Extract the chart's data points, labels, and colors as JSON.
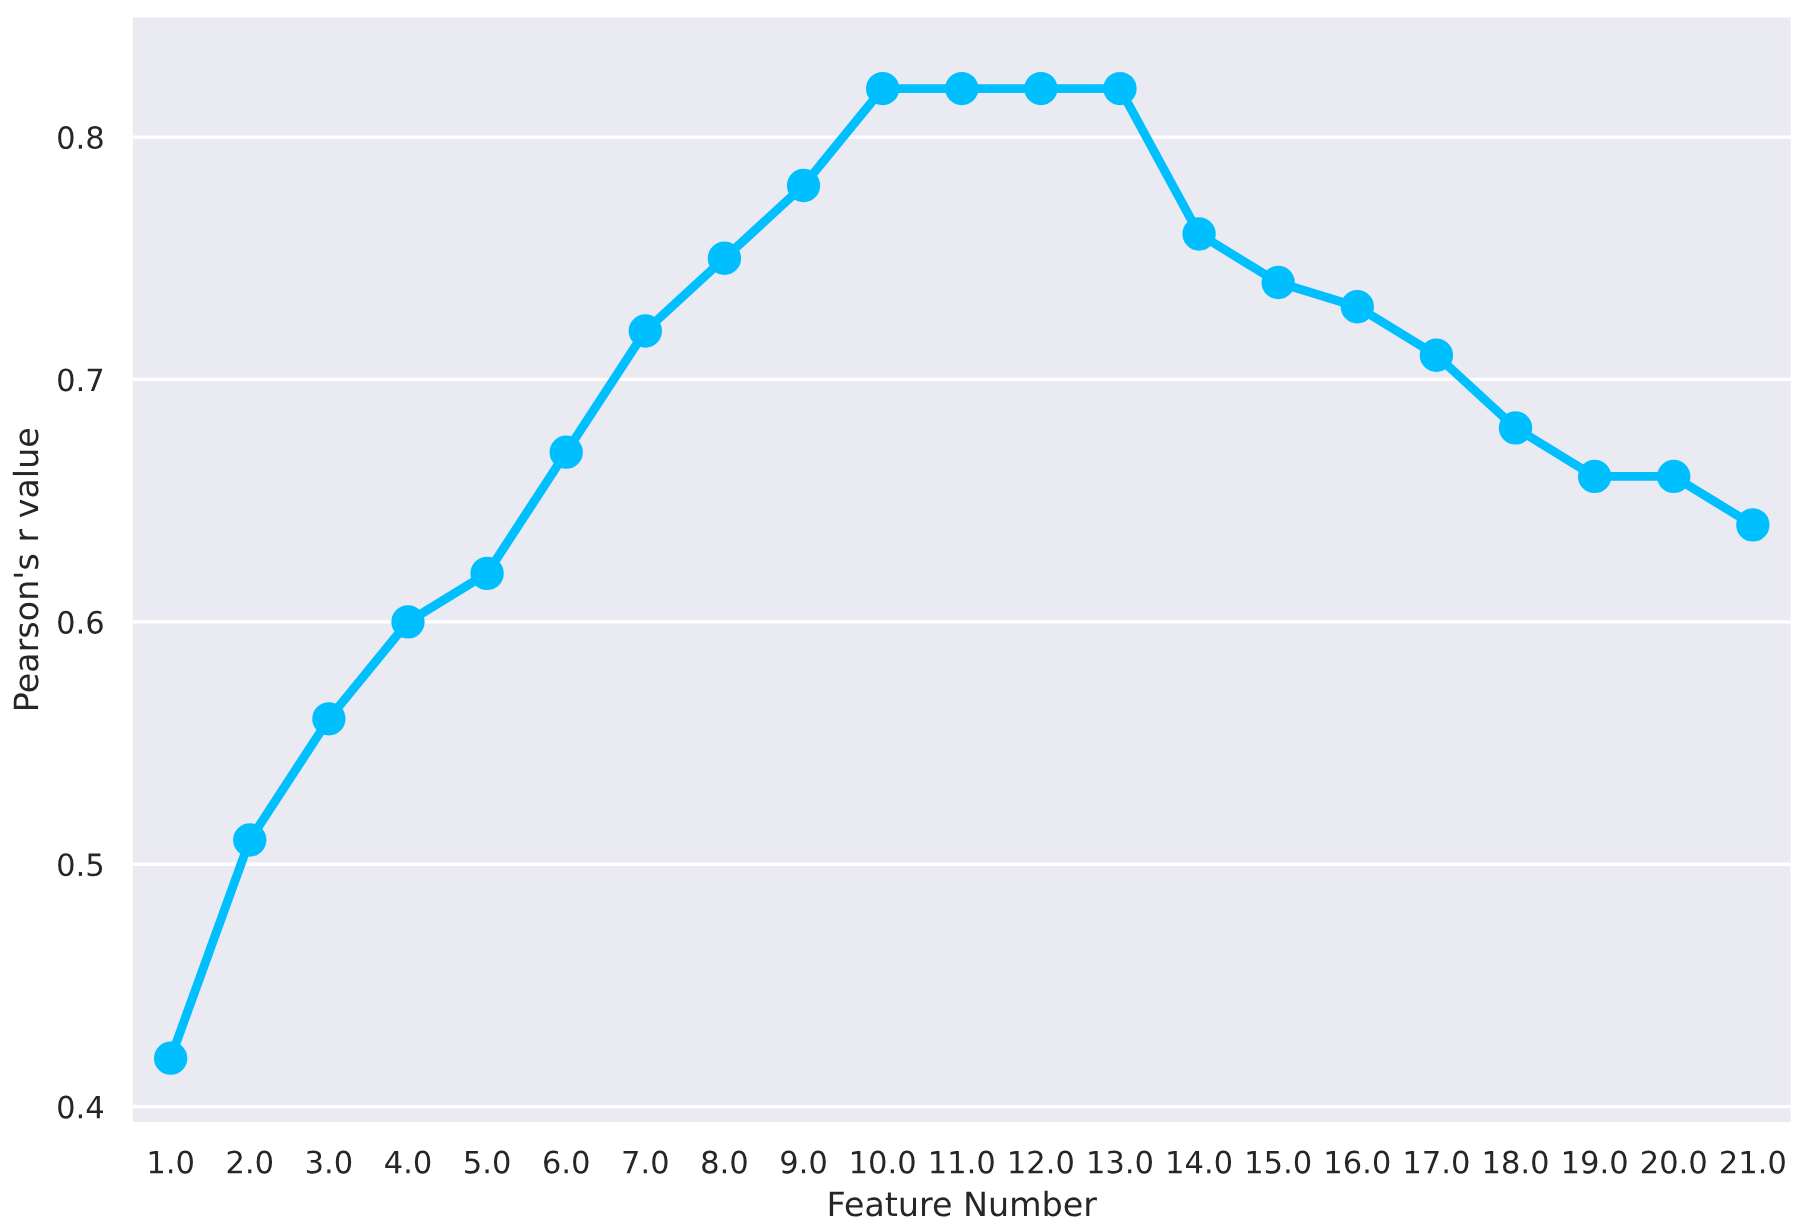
{
  "chart_data": {
    "type": "line",
    "xlabel": "Feature Number",
    "ylabel": "Pearson's r value",
    "categories": [
      "1.0",
      "2.0",
      "3.0",
      "4.0",
      "5.0",
      "6.0",
      "7.0",
      "8.0",
      "9.0",
      "10.0",
      "11.0",
      "12.0",
      "13.0",
      "14.0",
      "15.0",
      "16.0",
      "17.0",
      "18.0",
      "19.0",
      "20.0",
      "21.0"
    ],
    "series": [
      {
        "color": "#00bfff",
        "values": [
          0.42,
          0.51,
          0.56,
          0.6,
          0.62,
          0.67,
          0.72,
          0.75,
          0.78,
          0.82,
          0.82,
          0.82,
          0.82,
          0.76,
          0.74,
          0.73,
          0.71,
          0.68,
          0.66,
          0.66,
          0.64
        ]
      }
    ],
    "ylim": [
      0.393,
      0.85
    ],
    "yticks": [
      0.4,
      0.5,
      0.6,
      0.7,
      0.8
    ],
    "grid": "y",
    "marker": "circle",
    "line_style": "solid",
    "legend": false
  }
}
